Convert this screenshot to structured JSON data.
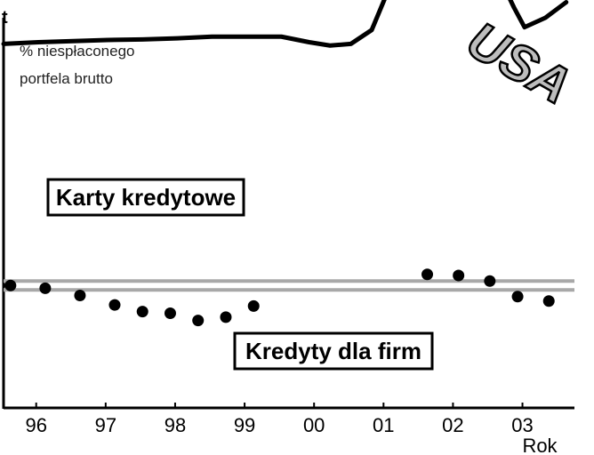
{
  "chart_data": {
    "type": "line",
    "corner_label": "t",
    "unit_line1": "% niespłaconego",
    "unit_line2": "portfela brutto",
    "country": "USA",
    "xlabel": "Rok",
    "x_ticks": [
      "96",
      "97",
      "98",
      "99",
      "00",
      "01",
      "02",
      "03"
    ],
    "xlim": [
      1995.5,
      2004.0
    ],
    "ylim": [
      0,
      8
    ],
    "series": [
      {
        "name": "Karty kredytowe",
        "style": "line",
        "color": "#000000",
        "points": [
          [
            1995.5,
            4.65
          ],
          [
            1996.0,
            4.68
          ],
          [
            1996.5,
            4.7
          ],
          [
            1997.0,
            4.72
          ],
          [
            1997.5,
            4.73
          ],
          [
            1998.0,
            4.75
          ],
          [
            1998.5,
            4.78
          ],
          [
            1999.0,
            4.78
          ],
          [
            1999.5,
            4.78
          ],
          [
            1999.9,
            4.68
          ],
          [
            2000.2,
            4.62
          ],
          [
            2000.5,
            4.65
          ],
          [
            2000.8,
            4.9
          ],
          [
            2001.0,
            5.5
          ],
          [
            2001.1,
            5.6
          ],
          [
            2001.3,
            6.1
          ],
          [
            2001.5,
            6.65
          ],
          [
            2001.7,
            7.1
          ],
          [
            2001.85,
            6.9
          ],
          [
            2002.0,
            6.15
          ],
          [
            2002.3,
            6.1
          ],
          [
            2002.6,
            5.95
          ],
          [
            2002.85,
            5.3
          ],
          [
            2003.0,
            4.95
          ],
          [
            2003.3,
            5.12
          ],
          [
            2003.6,
            5.4
          ]
        ]
      },
      {
        "name": "Kredyty dla firm",
        "style": "dots",
        "color": "#000000",
        "points": [
          [
            1995.6,
            0.3
          ],
          [
            1996.1,
            0.25
          ],
          [
            1996.6,
            0.12
          ],
          [
            1997.1,
            -0.05
          ],
          [
            1997.5,
            -0.17
          ],
          [
            1997.9,
            -0.2
          ],
          [
            1998.3,
            -0.33
          ],
          [
            1998.7,
            -0.27
          ],
          [
            1999.1,
            -0.07
          ],
          [
            2001.6,
            0.5
          ],
          [
            2002.05,
            0.48
          ],
          [
            2002.5,
            0.38
          ],
          [
            2002.9,
            0.1
          ],
          [
            2003.35,
            0.02
          ]
        ]
      }
    ],
    "reference_band": {
      "min": 0.22,
      "max": 0.38,
      "color": "#a8a8a8"
    }
  }
}
